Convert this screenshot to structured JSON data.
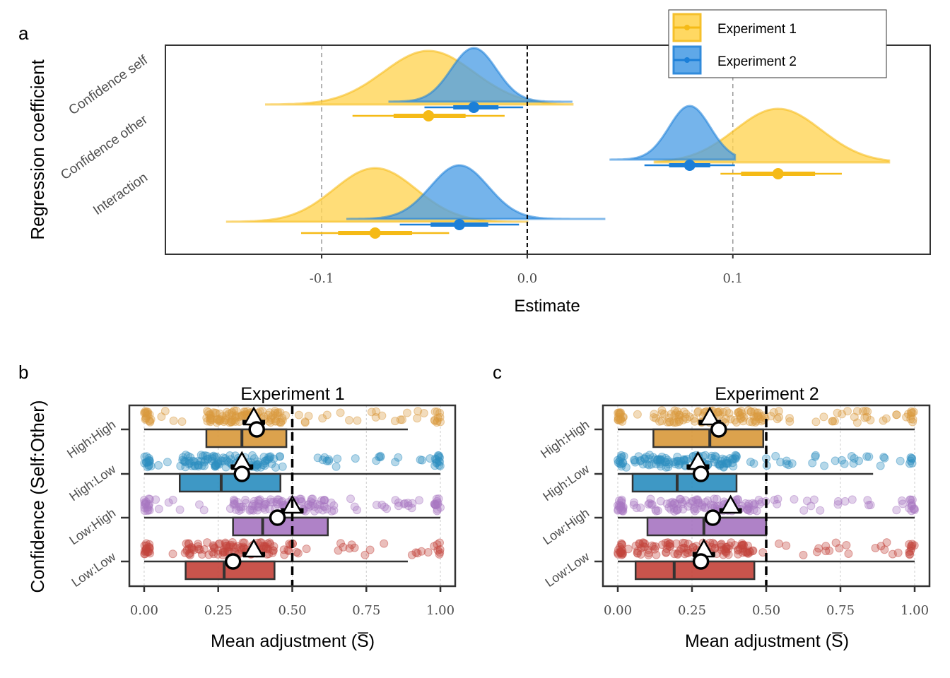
{
  "panel_labels": {
    "a": "a",
    "b": "b",
    "c": "c"
  },
  "colors": {
    "exp1": "#F5BA16",
    "exp1_fill": "#FFD452",
    "exp2": "#1B7FD8",
    "exp2_fill": "#4E9FE6",
    "hh": "#D99A3E",
    "hl": "#2E8FC0",
    "lh": "#A877C2",
    "ll": "#C4453D"
  },
  "chart_data": [
    {
      "type": "density-interval",
      "ylabel": "Regression coefficient",
      "xlabel": "Estimate",
      "xlim": [
        -0.176,
        0.196
      ],
      "xticks": [
        -0.1,
        0.0,
        0.1
      ],
      "xtick_labels": [
        "-0.1",
        "0.0",
        "0.1"
      ],
      "reference_lines": {
        "solid_dashed": 0.0,
        "grey_dashed": [
          -0.1,
          0.1
        ]
      },
      "categories": [
        "Confidence self",
        "Confidence other",
        "Interaction"
      ],
      "legend": {
        "position": "top-right",
        "entries": [
          {
            "label": "Experiment 1",
            "color_key": "exp1"
          },
          {
            "label": "Experiment 2",
            "color_key": "exp2"
          }
        ]
      },
      "series": [
        {
          "name": "Experiment 1",
          "color_key": "exp1",
          "estimates": [
            {
              "category": "Confidence self",
              "mean": -0.048,
              "sd": 0.022,
              "ci66": [
                -0.065,
                -0.03
              ],
              "ci95": [
                -0.085,
                -0.011
              ],
              "range": [
                -0.127,
                0.022
              ]
            },
            {
              "category": "Confidence other",
              "mean": 0.122,
              "sd": 0.021,
              "ci66": [
                0.104,
                0.14
              ],
              "ci95": [
                0.094,
                0.153
              ],
              "range": [
                0.062,
                0.176
              ]
            },
            {
              "category": "Interaction",
              "mean": -0.074,
              "sd": 0.02,
              "ci66": [
                -0.092,
                -0.056
              ],
              "ci95": [
                -0.11,
                -0.038
              ],
              "range": [
                -0.146,
                0.0
              ]
            }
          ]
        },
        {
          "name": "Experiment 2",
          "color_key": "exp2",
          "estimates": [
            {
              "category": "Confidence self",
              "mean": -0.026,
              "sd": 0.011,
              "ci66": [
                -0.036,
                -0.014
              ],
              "ci95": [
                -0.05,
                -0.002
              ],
              "range": [
                -0.067,
                0.022
              ]
            },
            {
              "category": "Confidence other",
              "mean": 0.079,
              "sd": 0.01,
              "ci66": [
                0.069,
                0.089
              ],
              "ci95": [
                0.057,
                0.101
              ],
              "range": [
                0.04,
                0.101
              ]
            },
            {
              "category": "Interaction",
              "mean": -0.033,
              "sd": 0.014,
              "ci66": [
                -0.047,
                -0.019
              ],
              "ci95": [
                -0.062,
                -0.004
              ],
              "range": [
                -0.088,
                0.038
              ]
            }
          ]
        }
      ]
    },
    {
      "type": "boxplot-jitter",
      "title": "Experiment 1",
      "xlabel": "Mean adjustment",
      "xlabel_symbol": "(S̅)",
      "ylabel": "Confidence (Self:Other)",
      "xlim": [
        -0.05,
        1.05
      ],
      "xticks": [
        0,
        0.25,
        0.5,
        0.75,
        1
      ],
      "xtick_labels": [
        "0.00",
        "0.25",
        "0.50",
        "0.75",
        "1.00"
      ],
      "reference_line": 0.5,
      "categories": [
        "High:High",
        "High:Low",
        "Low:High",
        "Low:Low"
      ],
      "boxes": [
        {
          "category": "High:High",
          "color_key": "hh",
          "whisker": [
            0,
            0.89
          ],
          "q1": 0.21,
          "median": 0.33,
          "q3": 0.48,
          "mean": 0.38,
          "predicted": 0.37
        },
        {
          "category": "High:Low",
          "color_key": "hl",
          "whisker": [
            0,
            1.0
          ],
          "q1": 0.12,
          "median": 0.26,
          "q3": 0.46,
          "mean": 0.33,
          "predicted": 0.33
        },
        {
          "category": "Low:High",
          "color_key": "lh",
          "whisker": [
            0,
            1.0
          ],
          "q1": 0.3,
          "median": 0.4,
          "q3": 0.62,
          "mean": 0.45,
          "predicted": 0.5
        },
        {
          "category": "Low:Low",
          "color_key": "ll",
          "whisker": [
            0,
            0.89
          ],
          "q1": 0.14,
          "median": 0.27,
          "q3": 0.44,
          "mean": 0.3,
          "predicted": 0.37
        }
      ]
    },
    {
      "type": "boxplot-jitter",
      "title": "Experiment 2",
      "xlabel": "Mean adjustment",
      "xlabel_symbol": "(S̅)",
      "ylabel": "",
      "xlim": [
        -0.05,
        1.05
      ],
      "xticks": [
        0,
        0.25,
        0.5,
        0.75,
        1
      ],
      "xtick_labels": [
        "0.00",
        "0.25",
        "0.50",
        "0.75",
        "1.00"
      ],
      "reference_line": 0.5,
      "categories": [
        "High:High",
        "High:Low",
        "Low:High",
        "Low:Low"
      ],
      "boxes": [
        {
          "category": "High:High",
          "color_key": "hh",
          "whisker": [
            0,
            1.0
          ],
          "q1": 0.12,
          "median": 0.31,
          "q3": 0.49,
          "mean": 0.34,
          "predicted": 0.31
        },
        {
          "category": "High:Low",
          "color_key": "hl",
          "whisker": [
            0,
            0.86
          ],
          "q1": 0.05,
          "median": 0.2,
          "q3": 0.4,
          "mean": 0.28,
          "predicted": 0.27
        },
        {
          "category": "Low:High",
          "color_key": "lh",
          "whisker": [
            0,
            1.0
          ],
          "q1": 0.1,
          "median": 0.29,
          "q3": 0.5,
          "mean": 0.32,
          "predicted": 0.38
        },
        {
          "category": "Low:Low",
          "color_key": "ll",
          "whisker": [
            0,
            1.0
          ],
          "q1": 0.06,
          "median": 0.19,
          "q3": 0.46,
          "mean": 0.28,
          "predicted": 0.29
        }
      ]
    }
  ]
}
